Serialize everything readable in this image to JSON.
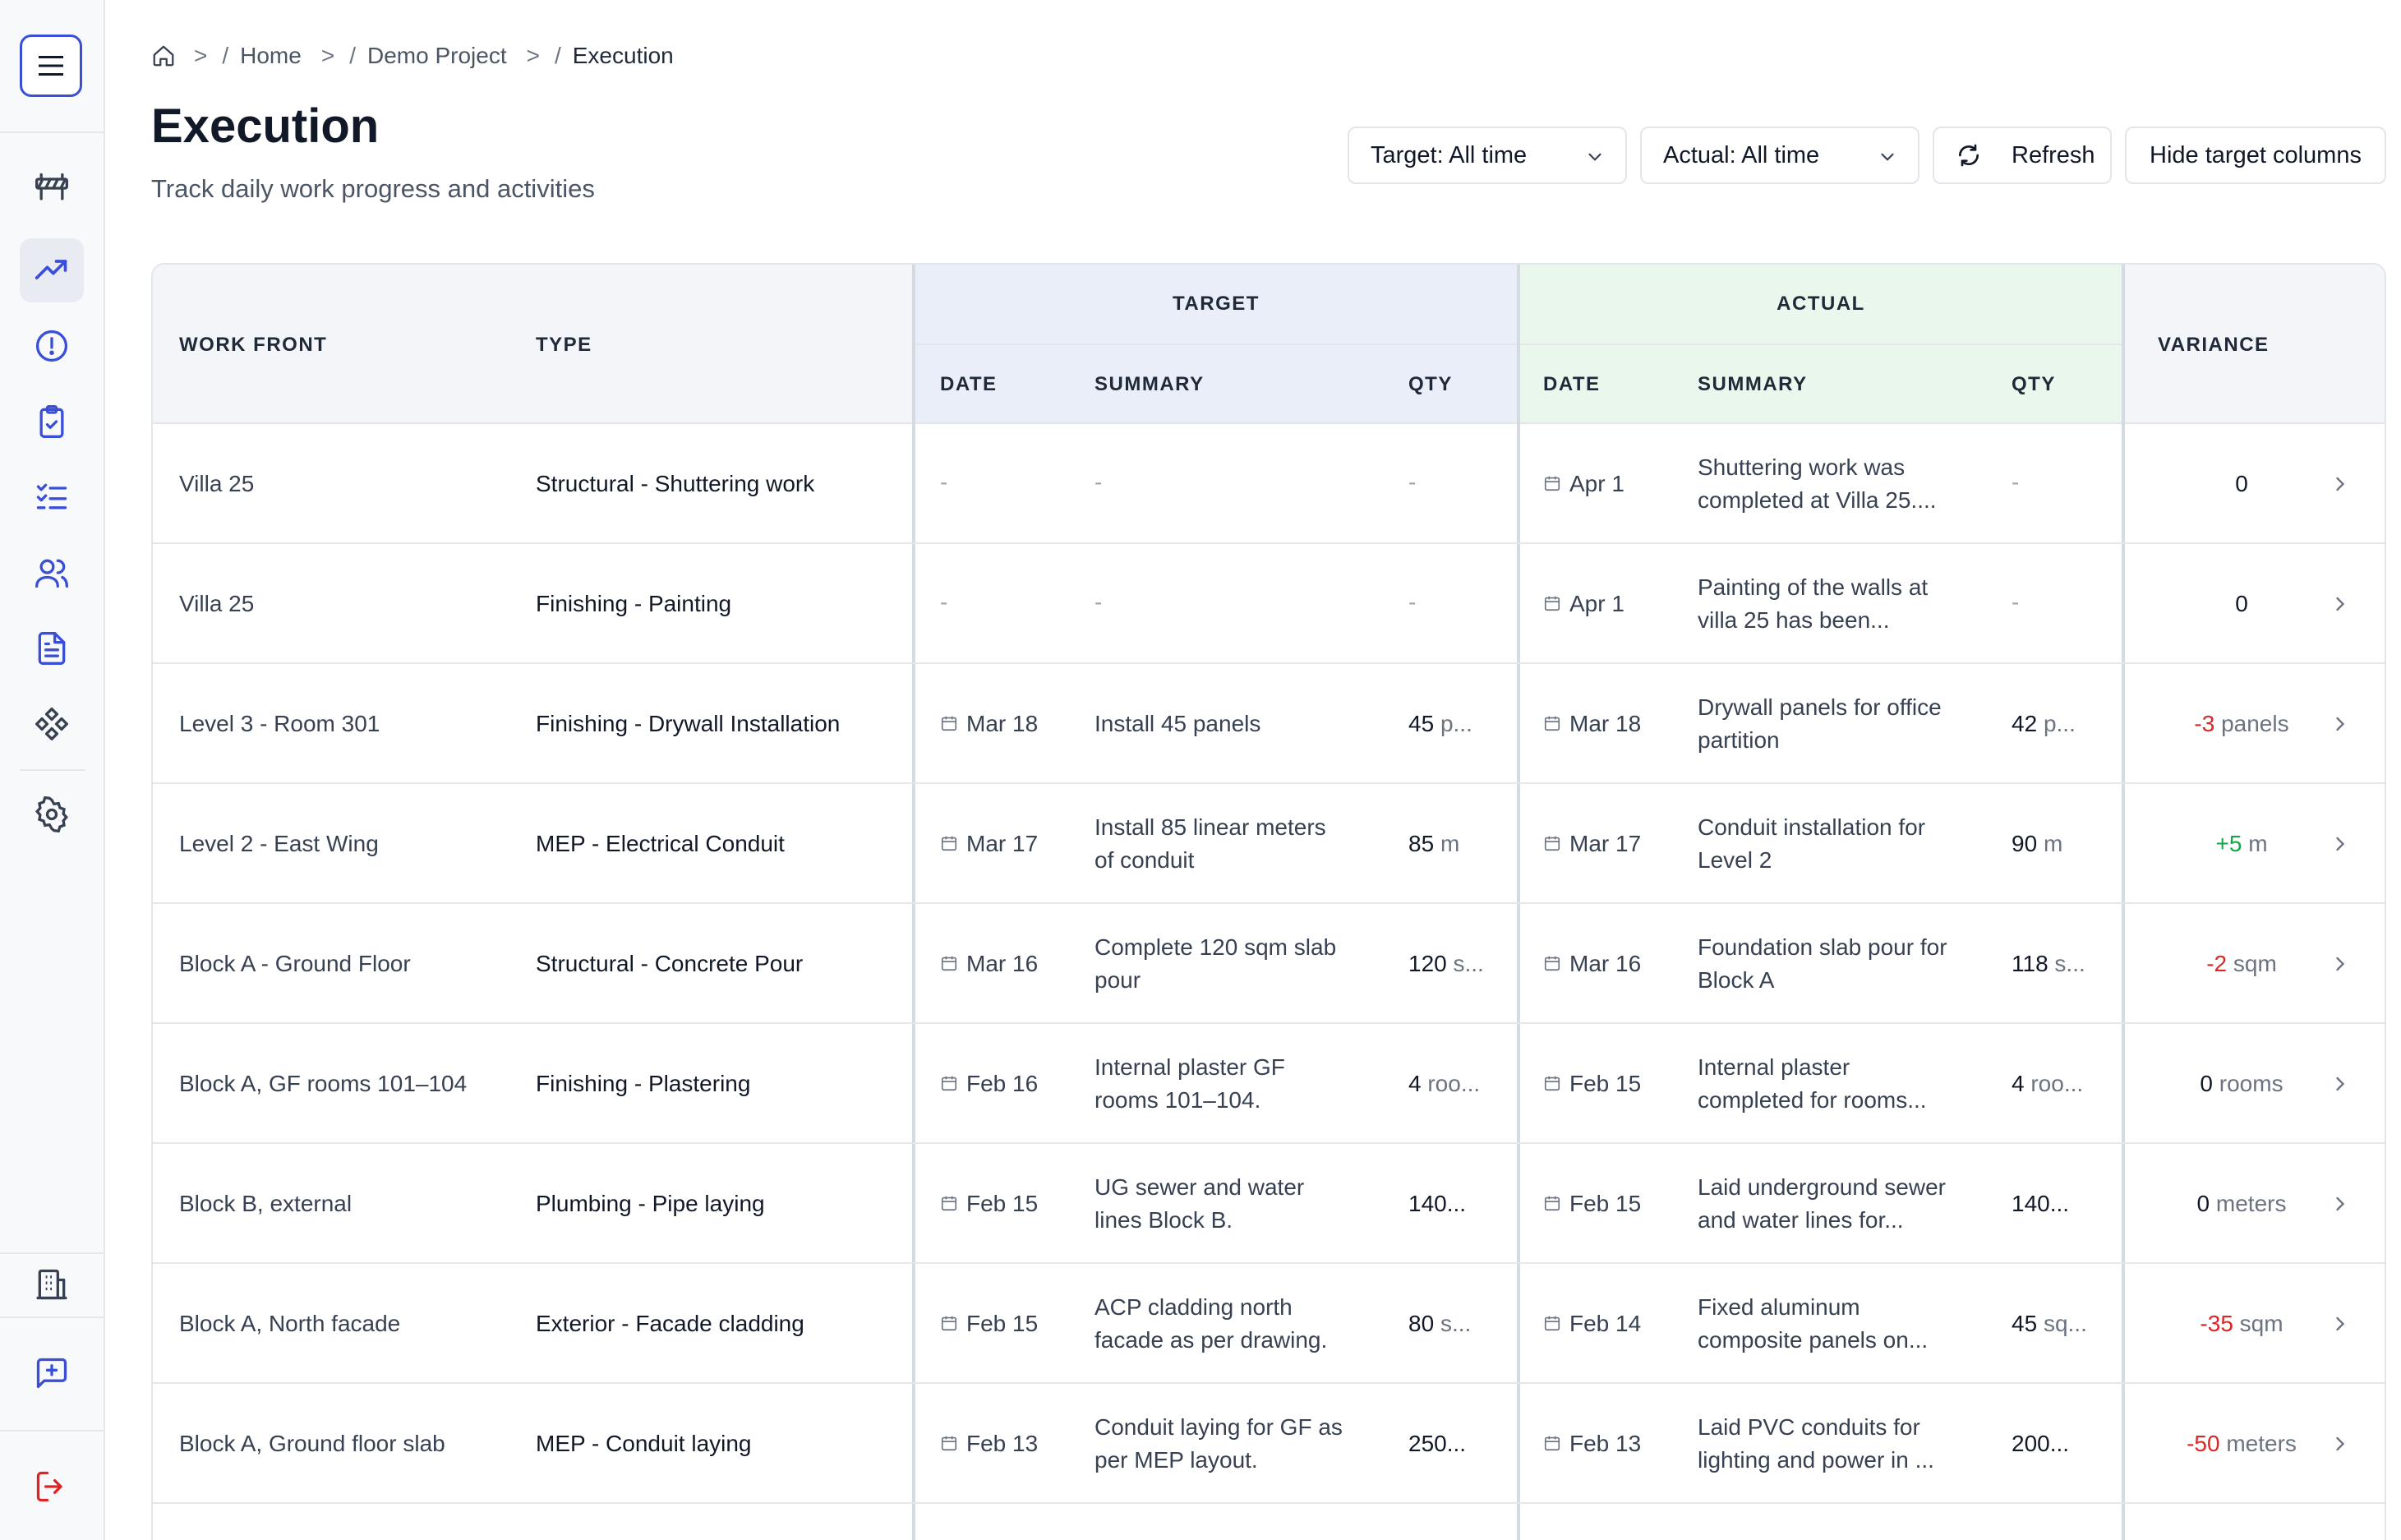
{
  "breadcrumb": {
    "items": [
      "Home",
      "Demo Project",
      "Execution"
    ]
  },
  "page": {
    "title": "Execution",
    "subtitle": "Track daily work progress and activities"
  },
  "toolbar": {
    "target_filter": "Target: All time",
    "actual_filter": "Actual: All time",
    "refresh_label": "Refresh",
    "hide_target_label": "Hide target columns"
  },
  "table": {
    "headers": {
      "work_front": "WORK FRONT",
      "type": "TYPE",
      "target": "TARGET",
      "actual": "ACTUAL",
      "variance": "VARIANCE",
      "date": "DATE",
      "summary": "SUMMARY",
      "qty": "QTY"
    },
    "rows": [
      {
        "work_front": "Villa 25",
        "type": "Structural - Shuttering work",
        "t_date": "-",
        "t_summary": [
          "-",
          ""
        ],
        "t_qty": "-",
        "t_unit": "",
        "a_date": "Apr 1",
        "a_summary": [
          "Shuttering work was",
          "completed at Villa 25...."
        ],
        "a_qty": "-",
        "a_unit": "",
        "var_num": "0",
        "var_unit": "",
        "var_sign": "zero"
      },
      {
        "work_front": "Villa 25",
        "type": "Finishing - Painting",
        "t_date": "-",
        "t_summary": [
          "-",
          ""
        ],
        "t_qty": "-",
        "t_unit": "",
        "a_date": "Apr 1",
        "a_summary": [
          "Painting of the walls at",
          "villa 25 has been..."
        ],
        "a_qty": "-",
        "a_unit": "",
        "var_num": "0",
        "var_unit": "",
        "var_sign": "zero"
      },
      {
        "work_front": "Level 3 - Room 301",
        "type": "Finishing - Drywall Installation",
        "t_date": "Mar 18",
        "t_summary": [
          "Install 45 panels",
          ""
        ],
        "t_qty": "45",
        "t_unit": "p...",
        "a_date": "Mar 18",
        "a_summary": [
          "Drywall panels for office",
          "partition"
        ],
        "a_qty": "42",
        "a_unit": "p...",
        "var_num": "-3",
        "var_unit": "panels",
        "var_sign": "neg"
      },
      {
        "work_front": "Level 2 - East Wing",
        "type": "MEP - Electrical Conduit",
        "t_date": "Mar 17",
        "t_summary": [
          "Install 85 linear meters",
          "of conduit"
        ],
        "t_qty": "85",
        "t_unit": "m",
        "a_date": "Mar 17",
        "a_summary": [
          "Conduit installation for",
          "Level 2"
        ],
        "a_qty": "90",
        "a_unit": "m",
        "var_num": "+5",
        "var_unit": "m",
        "var_sign": "pos"
      },
      {
        "work_front": "Block A - Ground Floor",
        "type": "Structural - Concrete Pour",
        "t_date": "Mar 16",
        "t_summary": [
          "Complete 120 sqm slab",
          "pour"
        ],
        "t_qty": "120",
        "t_unit": "s...",
        "a_date": "Mar 16",
        "a_summary": [
          "Foundation slab pour for",
          "Block A"
        ],
        "a_qty": "118",
        "a_unit": "s...",
        "var_num": "-2",
        "var_unit": "sqm",
        "var_sign": "neg"
      },
      {
        "work_front": "Block A, GF rooms 101–104",
        "type": "Finishing - Plastering",
        "t_date": "Feb 16",
        "t_summary": [
          "Internal plaster GF",
          "rooms 101–104."
        ],
        "t_qty": "4",
        "t_unit": "roo...",
        "a_date": "Feb 15",
        "a_summary": [
          "Internal plaster",
          "completed for rooms..."
        ],
        "a_qty": "4",
        "a_unit": "roo...",
        "var_num": "0",
        "var_unit": "rooms",
        "var_sign": "zero"
      },
      {
        "work_front": "Block B, external",
        "type": "Plumbing - Pipe laying",
        "t_date": "Feb 15",
        "t_summary": [
          "UG sewer and water",
          "lines Block B."
        ],
        "t_qty": "140...",
        "t_unit": "",
        "a_date": "Feb 15",
        "a_summary": [
          "Laid underground sewer",
          "and water lines for..."
        ],
        "a_qty": "140...",
        "a_unit": "",
        "var_num": "0",
        "var_unit": "meters",
        "var_sign": "zero"
      },
      {
        "work_front": "Block A, North facade",
        "type": "Exterior - Facade cladding",
        "t_date": "Feb 15",
        "t_summary": [
          "ACP cladding north",
          "facade as per drawing."
        ],
        "t_qty": "80",
        "t_unit": "s...",
        "a_date": "Feb 14",
        "a_summary": [
          "Fixed aluminum",
          "composite panels on..."
        ],
        "a_qty": "45",
        "a_unit": "sq...",
        "var_num": "-35",
        "var_unit": "sqm",
        "var_sign": "neg"
      },
      {
        "work_front": "Block A, Ground floor slab",
        "type": "MEP - Conduit laying",
        "t_date": "Feb 13",
        "t_summary": [
          "Conduit laying for GF as",
          "per MEP layout."
        ],
        "t_qty": "250...",
        "t_unit": "",
        "a_date": "Feb 13",
        "a_summary": [
          "Laid PVC conduits for",
          "lighting and power in ..."
        ],
        "a_qty": "200...",
        "a_unit": "",
        "var_num": "-50",
        "var_unit": "meters",
        "var_sign": "neg"
      }
    ]
  }
}
